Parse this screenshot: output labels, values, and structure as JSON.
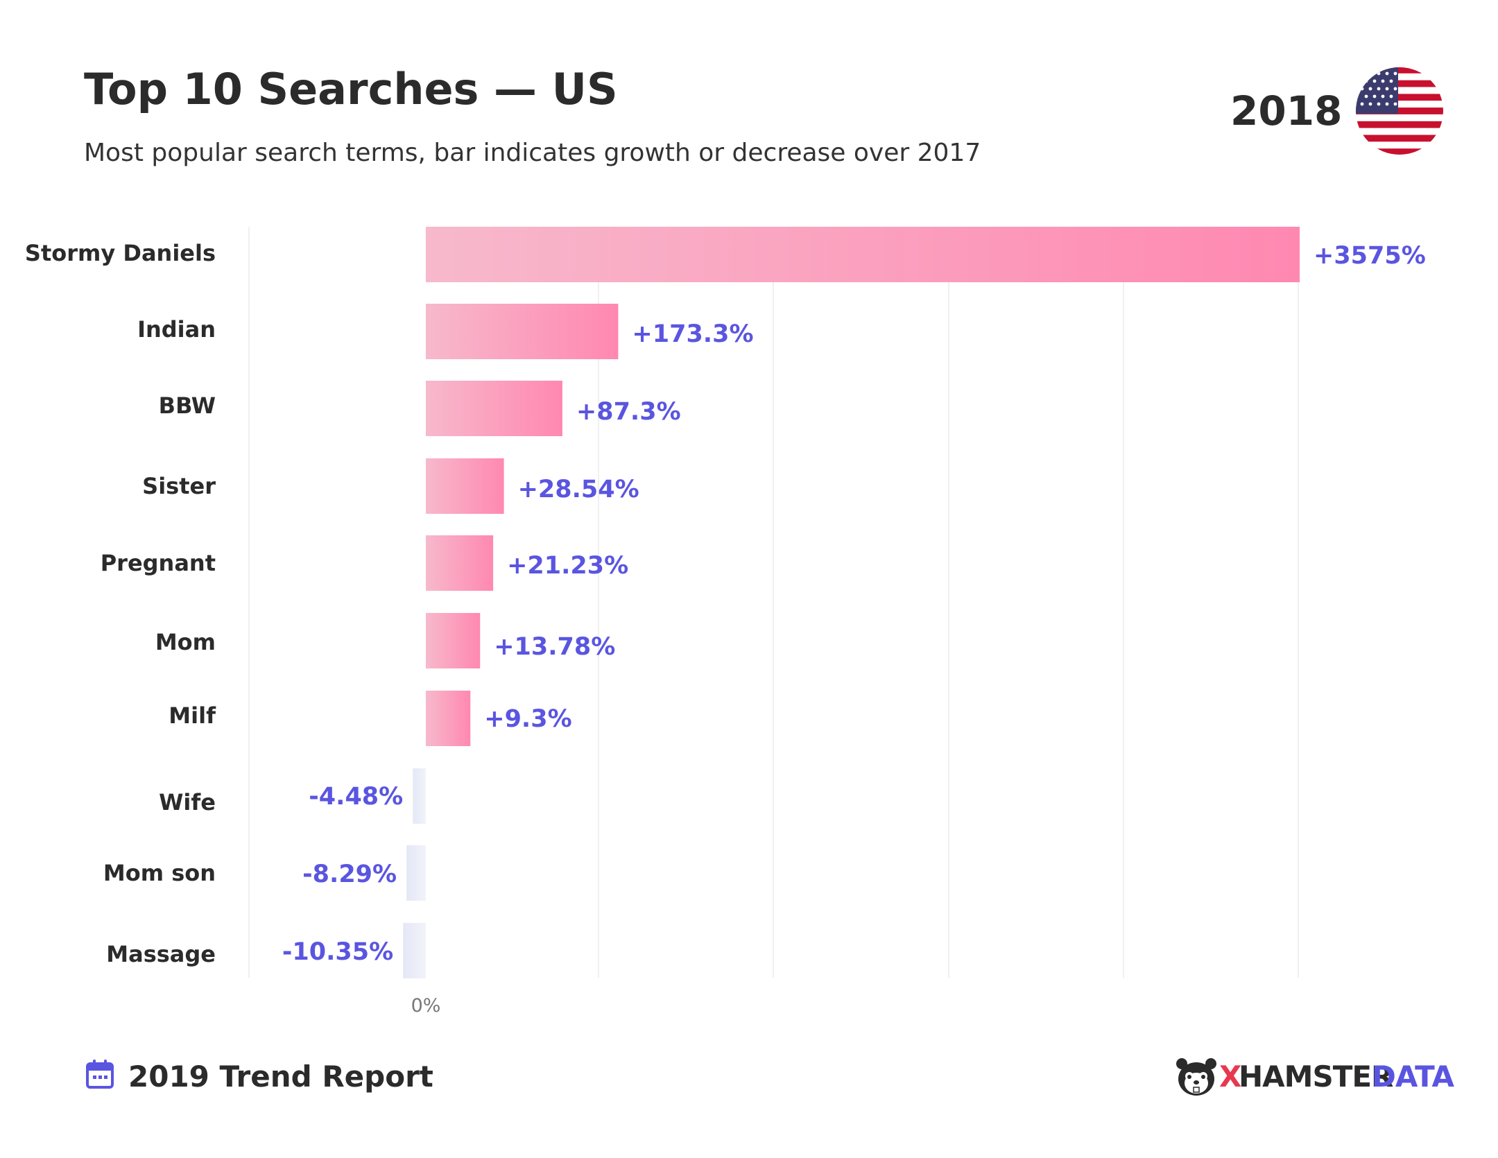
{
  "header": {
    "title": "Top 10 Searches — US",
    "subtitle": "Most popular search terms, bar indicates growth or decrease over 2017",
    "year": "2018",
    "flag_icon": "us-flag-icon"
  },
  "footer": {
    "report": "2019 Trend Report",
    "calendar_icon": "calendar-icon",
    "brand_x": "X",
    "brand_hamster": "HAMSTER",
    "brand_data": "DATA",
    "brand_icon": "hamster-logo-icon"
  },
  "colors": {
    "positive_bar_start": "#f7b9cc",
    "positive_bar_end": "#ff88b1",
    "negative_bar": "#e4e8f6",
    "value_label": "#5a55e0",
    "brand_x": "#e8384f"
  },
  "chart_data": {
    "type": "bar",
    "orientation": "horizontal",
    "categories": [
      "Stormy Daniels",
      "Indian",
      "BBW",
      "Sister",
      "Pregnant",
      "Mom",
      "Milf",
      "Wife",
      "Mom son",
      "Massage"
    ],
    "values": [
      3575,
      173.3,
      87.3,
      28.54,
      21.23,
      13.78,
      9.3,
      -4.48,
      -8.29,
      -10.35
    ],
    "value_labels": [
      "+3575%",
      "+173.3%",
      "+87.3%",
      "+28.54%",
      "+21.23%",
      "+13.78%",
      "+9.3%",
      "-4.48%",
      "-8.29%",
      "-10.35%"
    ],
    "x_tick_labels": [
      "0%"
    ],
    "grid": true,
    "legend": "none"
  }
}
